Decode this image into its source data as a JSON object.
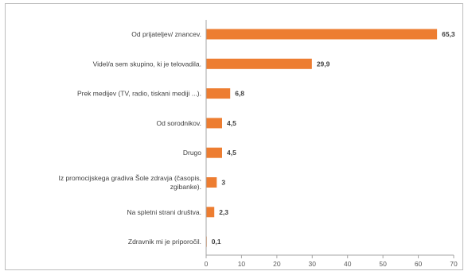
{
  "chart_data": {
    "type": "bar",
    "orientation": "horizontal",
    "categories": [
      [
        "Od prijateljev/ znancev."
      ],
      [
        "Videl/a sem skupino, ki je telovadila."
      ],
      [
        "Prek medijev (TV, radio, tiskani mediji ...)."
      ],
      [
        "Od sorodnikov."
      ],
      [
        "Drugo"
      ],
      [
        "Iz promocijskega gradiva Šole zdravja (časopis,",
        "zgibanke)."
      ],
      [
        "Na spletni strani društva."
      ],
      [
        "Zdravnik mi je priporočil."
      ]
    ],
    "values": [
      65.3,
      29.9,
      6.8,
      4.5,
      4.5,
      3,
      2.3,
      0.1
    ],
    "value_labels": [
      "65,3",
      "29,9",
      "6,8",
      "4,5",
      "4,5",
      "3",
      "2,3",
      "0,1"
    ],
    "xlim": [
      0,
      70
    ],
    "x_ticks": [
      0,
      10,
      20,
      30,
      40,
      50,
      60,
      70
    ],
    "bar_color": "#ed7d31",
    "grid": false,
    "title": "",
    "xlabel": "",
    "ylabel": ""
  }
}
